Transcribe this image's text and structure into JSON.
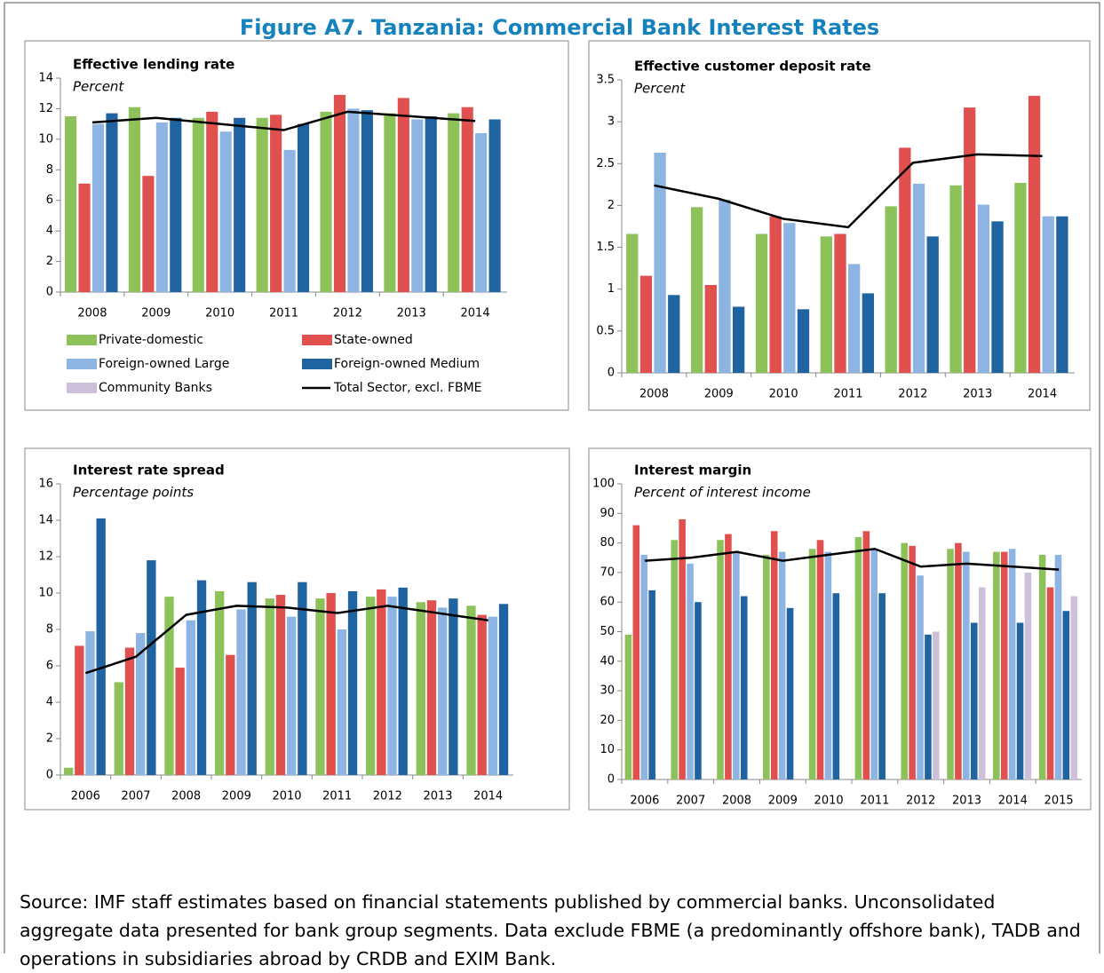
{
  "title": "Figure A7. Tanzania: Commercial Bank Interest Rates",
  "legend": [
    {
      "name": "Private-domestic",
      "color": "#8dc25a",
      "marker": "bar"
    },
    {
      "name": "State-owned",
      "color": "#e0504e",
      "marker": "bar"
    },
    {
      "name": "Foreign-owned Large",
      "color": "#8db4e2",
      "marker": "bar"
    },
    {
      "name": "Foreign-owned Medium",
      "color": "#1f64a0",
      "marker": "bar"
    },
    {
      "name": "Community Banks",
      "color": "#ccc0da",
      "marker": "bar"
    },
    {
      "name": "Total Sector, excl. FBME",
      "color": "#000000",
      "marker": "line"
    }
  ],
  "chart_data": [
    {
      "type": "bar",
      "title": "Effective lending rate",
      "subtitle": "Percent",
      "categories": [
        "2008",
        "2009",
        "2010",
        "2011",
        "2012",
        "2013",
        "2014"
      ],
      "ylim": [
        0,
        14
      ],
      "yticks": [
        0,
        2,
        4,
        6,
        8,
        10,
        12,
        14
      ],
      "series": [
        {
          "name": "Private-domestic",
          "color": "#8dc25a",
          "values": [
            11.5,
            12.1,
            11.4,
            11.4,
            11.8,
            11.7,
            11.7
          ]
        },
        {
          "name": "State-owned",
          "color": "#e0504e",
          "values": [
            7.1,
            7.6,
            11.8,
            11.6,
            12.9,
            12.7,
            12.1
          ]
        },
        {
          "name": "Foreign-owned Large",
          "color": "#8db4e2",
          "values": [
            11.0,
            11.1,
            10.5,
            9.3,
            12.0,
            11.3,
            10.4
          ]
        },
        {
          "name": "Foreign-owned Medium",
          "color": "#1f64a0",
          "values": [
            11.7,
            11.4,
            11.4,
            11.0,
            11.9,
            11.5,
            11.3
          ]
        },
        {
          "name": "Total Sector, excl. FBME",
          "color": "#000000",
          "type": "line",
          "values": [
            11.1,
            11.4,
            11.0,
            10.6,
            11.8,
            11.5,
            11.2
          ]
        }
      ]
    },
    {
      "type": "bar",
      "title": "Effective customer deposit rate",
      "subtitle": "Percent",
      "categories": [
        "2008",
        "2009",
        "2010",
        "2011",
        "2012",
        "2013",
        "2014"
      ],
      "ylim": [
        0,
        3.5
      ],
      "yticks": [
        0,
        0.5,
        1,
        1.5,
        2,
        2.5,
        3,
        3.5
      ],
      "series": [
        {
          "name": "Private-domestic",
          "color": "#8dc25a",
          "values": [
            1.66,
            1.98,
            1.66,
            1.63,
            1.99,
            2.24,
            2.27
          ]
        },
        {
          "name": "State-owned",
          "color": "#e0504e",
          "values": [
            1.16,
            1.05,
            1.87,
            1.66,
            2.69,
            3.17,
            3.31
          ]
        },
        {
          "name": "Foreign-owned Large",
          "color": "#8db4e2",
          "values": [
            2.63,
            2.07,
            1.79,
            1.3,
            2.26,
            2.01,
            1.87
          ]
        },
        {
          "name": "Foreign-owned Medium",
          "color": "#1f64a0",
          "values": [
            0.93,
            0.79,
            0.76,
            0.95,
            1.63,
            1.81,
            1.87
          ]
        },
        {
          "name": "Total Sector, excl. FBME",
          "color": "#000000",
          "type": "line",
          "values": [
            2.24,
            2.08,
            1.84,
            1.74,
            2.51,
            2.61,
            2.59
          ]
        }
      ]
    },
    {
      "type": "bar",
      "title": "Interest rate spread",
      "subtitle": "Percentage points",
      "categories": [
        "2006",
        "2007",
        "2008",
        "2009",
        "2010",
        "2011",
        "2012",
        "2013",
        "2014"
      ],
      "ylim": [
        0,
        16
      ],
      "yticks": [
        0,
        2,
        4,
        6,
        8,
        10,
        12,
        14,
        16
      ],
      "series": [
        {
          "name": "Private-domestic",
          "color": "#8dc25a",
          "values": [
            0.4,
            5.1,
            9.8,
            10.1,
            9.7,
            9.7,
            9.8,
            9.5,
            9.3
          ]
        },
        {
          "name": "State-owned",
          "color": "#e0504e",
          "values": [
            7.1,
            7.0,
            5.9,
            6.6,
            9.9,
            10.0,
            10.2,
            9.6,
            8.8
          ]
        },
        {
          "name": "Foreign-owned Large",
          "color": "#8db4e2",
          "values": [
            7.9,
            7.8,
            8.5,
            9.1,
            8.7,
            8.0,
            9.8,
            9.2,
            8.7
          ]
        },
        {
          "name": "Foreign-owned Medium",
          "color": "#1f64a0",
          "values": [
            14.1,
            11.8,
            10.7,
            10.6,
            10.6,
            10.1,
            10.3,
            9.7,
            9.4
          ]
        },
        {
          "name": "Total Sector, excl. FBME",
          "color": "#000000",
          "type": "line",
          "values": [
            5.6,
            6.5,
            8.8,
            9.3,
            9.2,
            8.9,
            9.3,
            8.9,
            8.5
          ]
        }
      ]
    },
    {
      "type": "bar",
      "title": "Interest margin",
      "subtitle": "Percent of interest income",
      "categories": [
        "2006",
        "2007",
        "2008",
        "2009",
        "2010",
        "2011",
        "2012",
        "2013",
        "2014",
        "2015"
      ],
      "ylim": [
        0,
        100
      ],
      "yticks": [
        0,
        10,
        20,
        30,
        40,
        50,
        60,
        70,
        80,
        90,
        100
      ],
      "series": [
        {
          "name": "Private-domestic",
          "color": "#8dc25a",
          "values": [
            49,
            81,
            81,
            76,
            78,
            82,
            80,
            78,
            77,
            76
          ]
        },
        {
          "name": "State-owned",
          "color": "#e0504e",
          "values": [
            86,
            88,
            83,
            84,
            81,
            84,
            79,
            80,
            77,
            65
          ]
        },
        {
          "name": "Foreign-owned Large",
          "color": "#8db4e2",
          "values": [
            76,
            73,
            77,
            77,
            77,
            78,
            69,
            77,
            78,
            76
          ]
        },
        {
          "name": "Foreign-owned Medium",
          "color": "#1f64a0",
          "values": [
            64,
            60,
            62,
            58,
            63,
            63,
            49,
            53,
            53,
            57
          ]
        },
        {
          "name": "Community Banks",
          "color": "#ccc0da",
          "values": [
            null,
            null,
            null,
            null,
            null,
            null,
            50,
            65,
            70,
            62
          ]
        },
        {
          "name": "Total Sector, excl. FBME",
          "color": "#000000",
          "type": "line",
          "values": [
            74,
            75,
            77,
            74,
            76,
            78,
            72,
            73,
            72,
            71
          ]
        }
      ]
    }
  ],
  "source": "Source: IMF staff estimates based on financial statements published by commercial banks. Unconsolidated aggregate data presented for bank group segments. Data exclude FBME (a predominantly offshore bank), TADB and operations in subsidiaries abroad by CRDB and EXIM Bank."
}
